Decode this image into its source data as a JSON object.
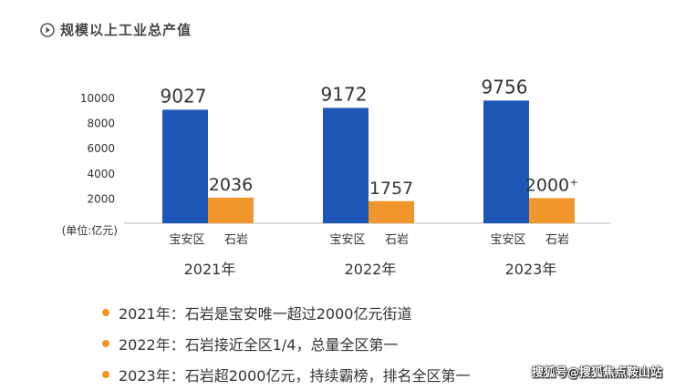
{
  "section_title": "规模以上工业总产值",
  "chart_data": {
    "type": "bar",
    "categories": [
      "2021年",
      "2022年",
      "2023年"
    ],
    "sublabels": [
      "宝安区",
      "石岩"
    ],
    "series": [
      {
        "name": "宝安区",
        "values": [
          9027,
          9172,
          9756
        ],
        "labels": [
          "9027",
          "9172",
          "9756"
        ],
        "color": "#1d56b6"
      },
      {
        "name": "石岩",
        "values": [
          2036,
          1757,
          2000
        ],
        "labels": [
          "2036",
          "1757",
          "2000⁺"
        ],
        "color": "#f0962c"
      }
    ],
    "yticks": [
      2000,
      4000,
      6000,
      8000,
      10000
    ],
    "ylim": [
      0,
      10000
    ],
    "unit_label": "(单位:亿元)",
    "grid": false,
    "legend": "none"
  },
  "bullets": [
    "2021年：石岩是宝安唯一超过2000亿元街道",
    "2022年：石岩接近全区1/4，总量全区第一",
    "2023年：石岩超2000亿元，持续霸榜，排名全区第一"
  ],
  "watermark": "搜狐号@搜狐焦点鞍山站"
}
